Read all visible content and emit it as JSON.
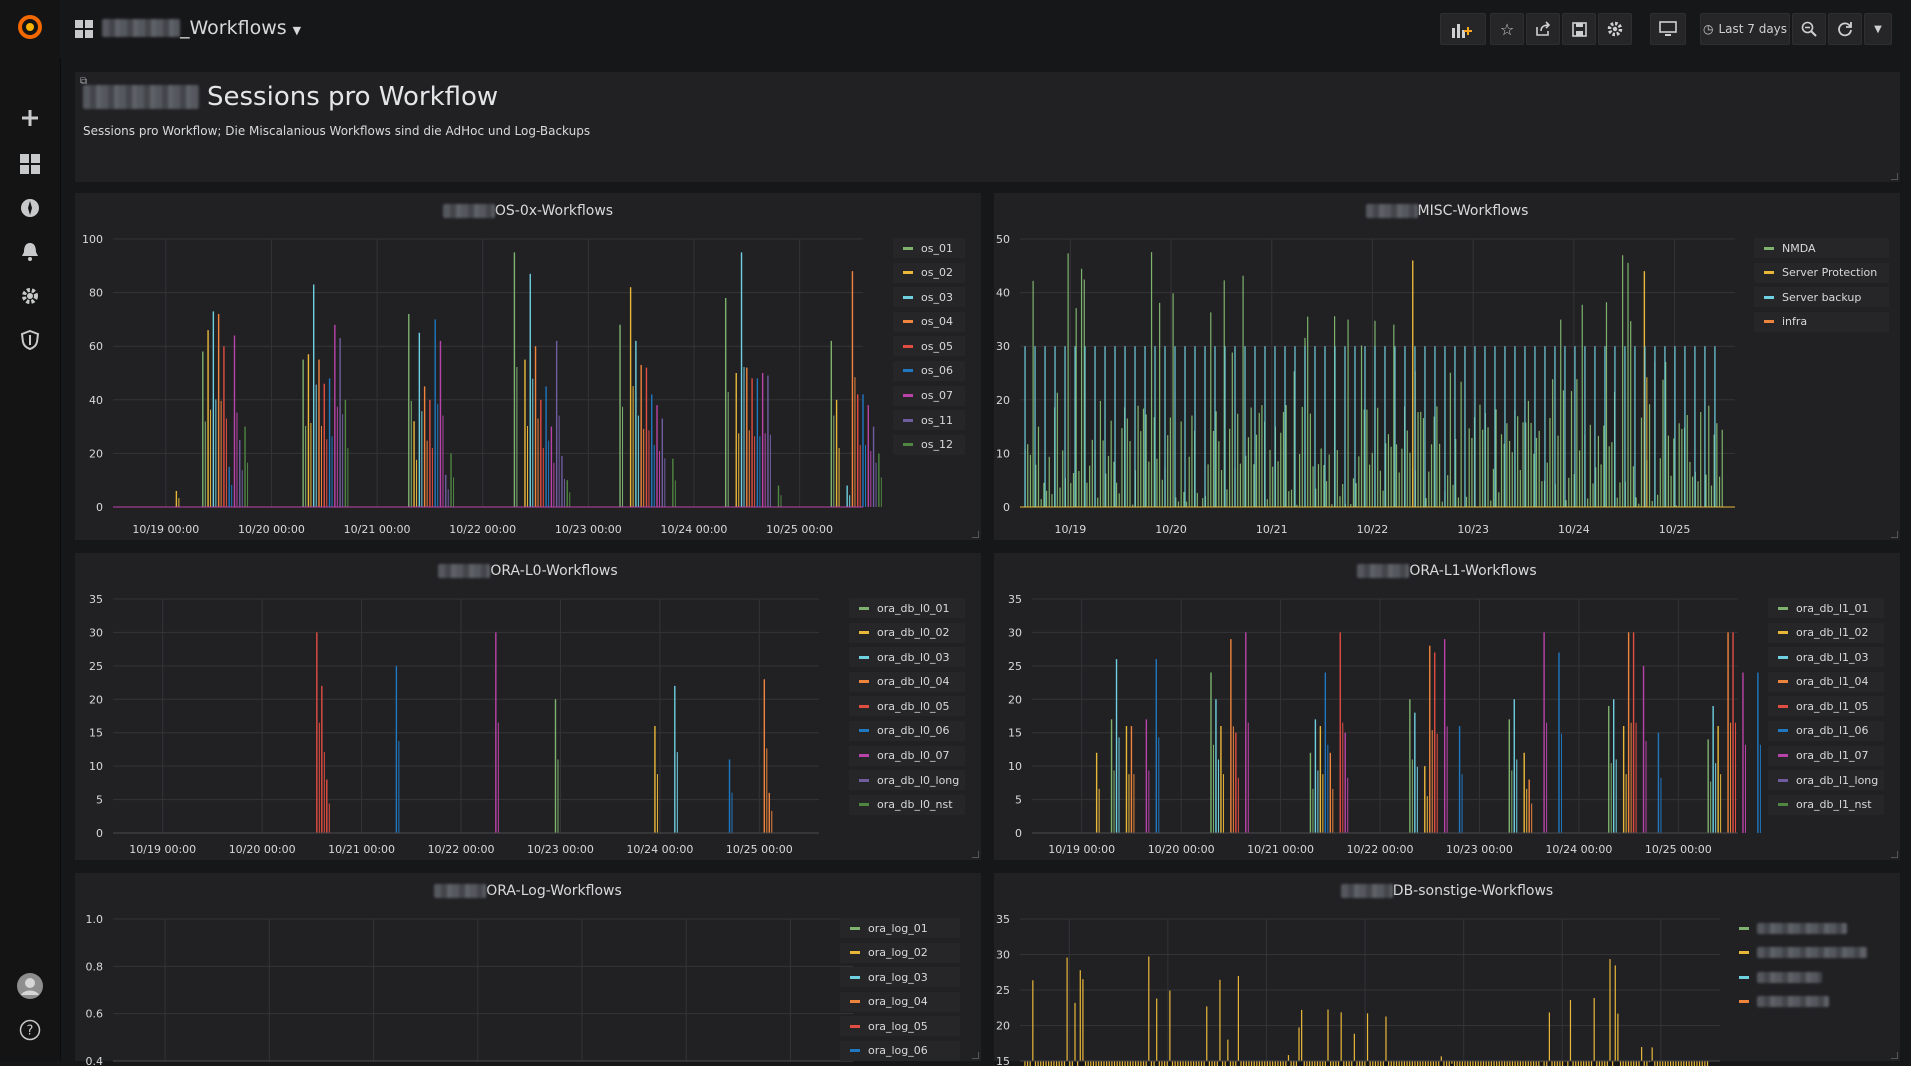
{
  "app": {
    "dashboard_title": "_Workflows"
  },
  "toolbar": {
    "time_range": "Last 7 days"
  },
  "text_panel": {
    "title": "Sessions pro Workflow",
    "description": "Sessions pro Workflow; Die Miscalanious Workflows sind die AdHoc und Log-Backups"
  },
  "colors": {
    "green": "#7eb26d",
    "yellow": "#eab839",
    "cyan": "#6ed0e0",
    "orange": "#ef843c",
    "red": "#e24d42",
    "blue": "#1f78c1",
    "pink": "#ba43a9",
    "purple": "#705da0",
    "darkgreen": "#508642"
  },
  "panels": [
    {
      "title": "OS-0x-Workflows",
      "legend": [
        "os_01",
        "os_02",
        "os_03",
        "os_04",
        "os_05",
        "os_06",
        "os_07",
        "os_11",
        "os_12"
      ],
      "chart_data": {
        "type": "bar",
        "x": [
          "10/19 00:00",
          "10/20 00:00",
          "10/21 00:00",
          "10/22 00:00",
          "10/23 00:00",
          "10/24 00:00",
          "10/25 00:00"
        ],
        "ylim": [
          0,
          100
        ],
        "yticks": [
          "0",
          "20",
          "40",
          "60",
          "80",
          "100"
        ],
        "series": [
          {
            "name": "os_01",
            "color": "#7eb26d",
            "points": [
              [
                0.35,
                58
              ],
              [
                1.3,
                55
              ],
              [
                2.3,
                72
              ],
              [
                3.3,
                95
              ],
              [
                4.3,
                68
              ],
              [
                5.3,
                78
              ],
              [
                6.3,
                62
              ]
            ]
          },
          {
            "name": "os_02",
            "color": "#eab839",
            "points": [
              [
                0.1,
                6
              ],
              [
                0.4,
                66
              ],
              [
                1.35,
                57
              ],
              [
                2.35,
                32
              ],
              [
                3.4,
                55
              ],
              [
                4.4,
                82
              ],
              [
                5.4,
                50
              ],
              [
                6.35,
                40
              ]
            ]
          },
          {
            "name": "os_03",
            "color": "#6ed0e0",
            "points": [
              [
                0.45,
                73
              ],
              [
                1.4,
                83
              ],
              [
                2.4,
                65
              ],
              [
                3.45,
                87
              ],
              [
                4.45,
                62
              ],
              [
                5.45,
                95
              ],
              [
                6.45,
                8
              ]
            ]
          },
          {
            "name": "os_04",
            "color": "#ef843c",
            "points": [
              [
                0.5,
                72
              ],
              [
                1.45,
                55
              ],
              [
                2.45,
                45
              ],
              [
                3.5,
                60
              ],
              [
                4.5,
                53
              ],
              [
                5.5,
                52
              ],
              [
                6.5,
                88
              ]
            ]
          },
          {
            "name": "os_05",
            "color": "#e24d42",
            "points": [
              [
                0.55,
                60
              ],
              [
                1.5,
                46
              ],
              [
                2.5,
                40
              ],
              [
                3.55,
                40
              ],
              [
                4.55,
                52
              ],
              [
                5.55,
                48
              ],
              [
                6.55,
                42
              ]
            ]
          },
          {
            "name": "os_06",
            "color": "#1f78c1",
            "points": [
              [
                0.6,
                15
              ],
              [
                1.55,
                48
              ],
              [
                2.55,
                70
              ],
              [
                3.6,
                45
              ],
              [
                4.6,
                42
              ],
              [
                5.6,
                48
              ],
              [
                6.6,
                42
              ]
            ]
          },
          {
            "name": "os_07",
            "color": "#ba43a9",
            "points": [
              [
                0.65,
                64
              ],
              [
                1.6,
                68
              ],
              [
                2.6,
                62
              ],
              [
                3.65,
                30
              ],
              [
                4.65,
                38
              ],
              [
                5.65,
                50
              ],
              [
                6.65,
                38
              ]
            ]
          },
          {
            "name": "os_11",
            "color": "#705da0",
            "points": [
              [
                0.7,
                25
              ],
              [
                1.65,
                63
              ],
              [
                2.65,
                12
              ],
              [
                3.7,
                62
              ],
              [
                3.75,
                19
              ],
              [
                4.7,
                33
              ],
              [
                5.7,
                49
              ],
              [
                6.7,
                30
              ]
            ]
          },
          {
            "name": "os_12",
            "color": "#508642",
            "points": [
              [
                0.75,
                30
              ],
              [
                1.7,
                40
              ],
              [
                2.7,
                20
              ],
              [
                3.8,
                10
              ],
              [
                4.8,
                18
              ],
              [
                5.8,
                8
              ],
              [
                6.75,
                20
              ]
            ]
          }
        ]
      }
    },
    {
      "title": "MISC-Workflows",
      "legend": [
        "NMDA",
        "Server Protection",
        "Server backup",
        "infra"
      ],
      "chart_data": {
        "type": "bar",
        "x": [
          "10/19",
          "10/20",
          "10/21",
          "10/22",
          "10/23",
          "10/24",
          "10/25"
        ],
        "ylim": [
          0,
          50
        ],
        "yticks": [
          "0",
          "10",
          "20",
          "30",
          "40",
          "50"
        ],
        "series": [
          {
            "name": "NMDA",
            "color": "#7eb26d",
            "pattern": "dense",
            "max": 48
          },
          {
            "name": "Server Protection",
            "color": "#eab839",
            "points": [
              [
                3.4,
                46
              ],
              [
                5.7,
                44
              ]
            ]
          },
          {
            "name": "Server backup",
            "color": "#6ed0e0",
            "pattern": "sparse",
            "max": 30
          },
          {
            "name": "infra",
            "color": "#ef843c",
            "points": []
          }
        ]
      }
    },
    {
      "title": "ORA-L0-Workflows",
      "legend": [
        "ora_db_l0_01",
        "ora_db_l0_02",
        "ora_db_l0_03",
        "ora_db_l0_04",
        "ora_db_l0_05",
        "ora_db_l0_06",
        "ora_db_l0_07",
        "ora_db_l0_long",
        "ora_db_l0_nst"
      ],
      "chart_data": {
        "type": "bar",
        "x": [
          "10/19 00:00",
          "10/20 00:00",
          "10/21 00:00",
          "10/22 00:00",
          "10/23 00:00",
          "10/24 00:00",
          "10/25 00:00"
        ],
        "ylim": [
          0,
          35
        ],
        "yticks": [
          "0",
          "5",
          "10",
          "15",
          "20",
          "25",
          "30",
          "35"
        ],
        "series": [
          {
            "name": "ora_db_l0_01",
            "color": "#7eb26d",
            "points": [
              [
                3.95,
                20
              ]
            ]
          },
          {
            "name": "ora_db_l0_02",
            "color": "#eab839",
            "points": [
              [
                4.95,
                16
              ]
            ]
          },
          {
            "name": "ora_db_l0_03",
            "color": "#6ed0e0",
            "points": [
              [
                5.15,
                22
              ]
            ]
          },
          {
            "name": "ora_db_l0_04",
            "color": "#ef843c",
            "points": [
              [
                6.05,
                23
              ],
              [
                6.1,
                6
              ]
            ]
          },
          {
            "name": "ora_db_l0_05",
            "color": "#e24d42",
            "points": [
              [
                1.55,
                30
              ],
              [
                1.6,
                22
              ],
              [
                1.65,
                8
              ]
            ]
          },
          {
            "name": "ora_db_l0_06",
            "color": "#1f78c1",
            "points": [
              [
                2.35,
                25
              ],
              [
                5.7,
                11
              ]
            ]
          },
          {
            "name": "ora_db_l0_07",
            "color": "#ba43a9",
            "points": [
              [
                3.35,
                30
              ]
            ]
          },
          {
            "name": "ora_db_l0_long",
            "color": "#705da0",
            "points": []
          },
          {
            "name": "ora_db_l0_nst",
            "color": "#508642",
            "points": []
          }
        ]
      }
    },
    {
      "title": "ORA-L1-Workflows",
      "legend": [
        "ora_db_l1_01",
        "ora_db_l1_02",
        "ora_db_l1_03",
        "ora_db_l1_04",
        "ora_db_l1_05",
        "ora_db_l1_06",
        "ora_db_l1_07",
        "ora_db_l1_long",
        "ora_db_l1_nst"
      ],
      "chart_data": {
        "type": "bar",
        "x": [
          "10/19 00:00",
          "10/20 00:00",
          "10/21 00:00",
          "10/22 00:00",
          "10/23 00:00",
          "10/24 00:00",
          "10/25 00:00"
        ],
        "ylim": [
          0,
          35
        ],
        "yticks": [
          "0",
          "5",
          "10",
          "15",
          "20",
          "25",
          "30",
          "35"
        ],
        "series": [
          {
            "name": "ora_db_l1_01",
            "color": "#7eb26d",
            "points": [
              [
                0.3,
                17
              ],
              [
                1.3,
                24
              ],
              [
                2.3,
                12
              ],
              [
                3.3,
                20
              ],
              [
                4.3,
                17
              ],
              [
                5.3,
                19
              ],
              [
                6.3,
                14
              ]
            ]
          },
          {
            "name": "ora_db_l1_02",
            "color": "#eab839",
            "points": [
              [
                0.15,
                12
              ],
              [
                0.45,
                16
              ],
              [
                1.4,
                16
              ],
              [
                2.4,
                16
              ],
              [
                3.45,
                10
              ],
              [
                4.45,
                12
              ],
              [
                5.45,
                16
              ],
              [
                6.4,
                16
              ]
            ]
          },
          {
            "name": "ora_db_l1_03",
            "color": "#6ed0e0",
            "points": [
              [
                0.35,
                26
              ],
              [
                1.35,
                20
              ],
              [
                2.35,
                17
              ],
              [
                3.35,
                18
              ],
              [
                4.35,
                20
              ],
              [
                5.35,
                20
              ],
              [
                6.35,
                19
              ]
            ]
          },
          {
            "name": "ora_db_l1_04",
            "color": "#ef843c",
            "points": [
              [
                0.5,
                16
              ],
              [
                1.5,
                29
              ],
              [
                2.5,
                12
              ],
              [
                3.5,
                28
              ],
              [
                4.5,
                8
              ],
              [
                5.5,
                30
              ],
              [
                6.5,
                30
              ]
            ]
          },
          {
            "name": "ora_db_l1_05",
            "color": "#e24d42",
            "points": [
              [
                1.55,
                15
              ],
              [
                2.6,
                30
              ],
              [
                3.55,
                27
              ],
              [
                5.55,
                30
              ],
              [
                6.55,
                30
              ]
            ]
          },
          {
            "name": "ora_db_l1_06",
            "color": "#1f78c1",
            "points": [
              [
                0.75,
                26
              ],
              [
                2.45,
                24
              ],
              [
                3.8,
                16
              ],
              [
                4.8,
                27
              ],
              [
                5.8,
                15
              ],
              [
                6.8,
                24
              ]
            ]
          },
          {
            "name": "ora_db_l1_07",
            "color": "#ba43a9",
            "points": [
              [
                0.65,
                17
              ],
              [
                1.65,
                30
              ],
              [
                2.65,
                15
              ],
              [
                3.65,
                29
              ],
              [
                4.65,
                30
              ],
              [
                5.65,
                25
              ],
              [
                6.65,
                24
              ]
            ]
          },
          {
            "name": "ora_db_l1_long",
            "color": "#705da0",
            "points": []
          },
          {
            "name": "ora_db_l1_nst",
            "color": "#508642",
            "points": []
          }
        ]
      }
    },
    {
      "title": "ORA-Log-Workflows",
      "legend": [
        "ora_log_01",
        "ora_log_02",
        "ora_log_03",
        "ora_log_04",
        "ora_log_05",
        "ora_log_06"
      ],
      "chart_data": {
        "type": "bar",
        "ylim": [
          0.4,
          1.0
        ],
        "yticks": [
          "0.4",
          "0.6",
          "0.8",
          "1.0"
        ],
        "series": []
      }
    },
    {
      "title": "DB-sonstige-Workflows",
      "legend": [
        "",
        "",
        "",
        ""
      ],
      "chart_data": {
        "type": "bar",
        "ylim": [
          15,
          35
        ],
        "yticks": [
          "15",
          "20",
          "25",
          "30",
          "35"
        ],
        "series": [
          {
            "name": "",
            "color": "#eab839",
            "pattern": "dense",
            "max": 30
          }
        ]
      }
    }
  ]
}
